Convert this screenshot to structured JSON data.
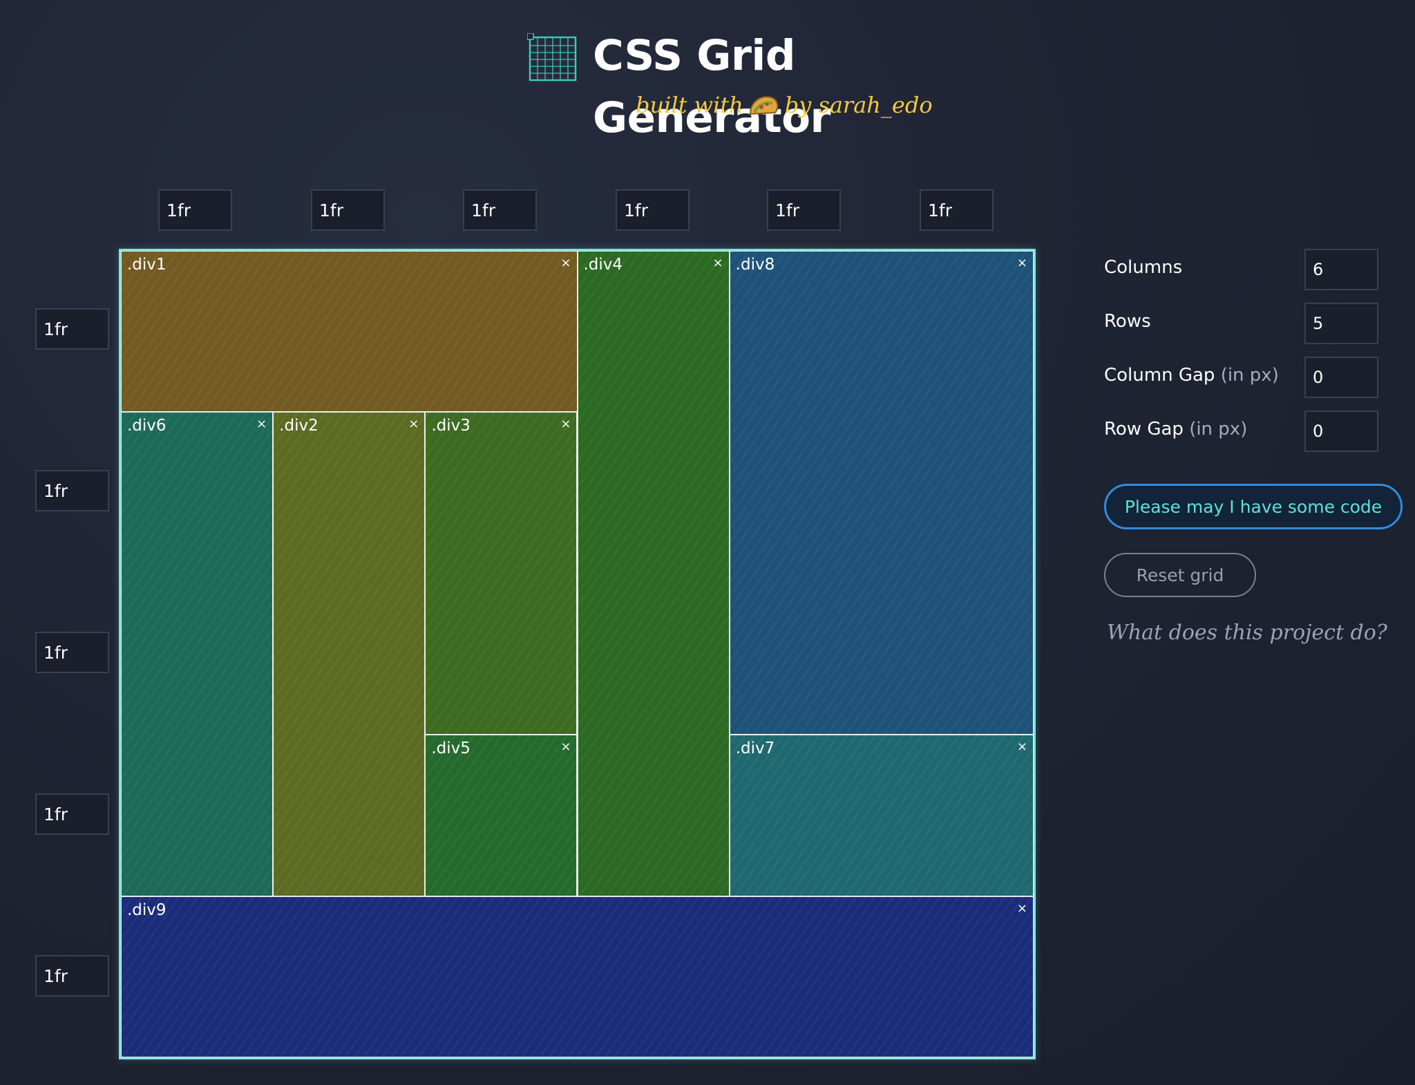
{
  "header": {
    "title": "CSS Grid Generator",
    "subtitle_before": "built with",
    "subtitle_after": "by sarah_edo",
    "logo_icon": "grid-logo-icon",
    "taco_icon": "taco-icon"
  },
  "column_tracks": [
    "1fr",
    "1fr",
    "1fr",
    "1fr",
    "1fr",
    "1fr"
  ],
  "row_tracks": [
    "1fr",
    "1fr",
    "1fr",
    "1fr",
    "1fr"
  ],
  "grid": {
    "columns": 6,
    "rows": 5,
    "close_glyph": "×",
    "areas": [
      {
        "name": ".div1",
        "col": 1,
        "row": 1,
        "colspan": 3,
        "rowspan": 1,
        "color": "#725a21",
        "closable": true
      },
      {
        "name": ".div4",
        "col": 4,
        "row": 1,
        "colspan": 1,
        "rowspan": 4,
        "color": "#2b6a22",
        "closable": true
      },
      {
        "name": ".div8",
        "col": 5,
        "row": 1,
        "colspan": 2,
        "rowspan": 3,
        "color": "#1e5278",
        "closable": true
      },
      {
        "name": ".div6",
        "col": 1,
        "row": 2,
        "colspan": 1,
        "rowspan": 3,
        "color": "#1d6a57",
        "closable": true
      },
      {
        "name": ".div2",
        "col": 2,
        "row": 2,
        "colspan": 1,
        "rowspan": 3,
        "color": "#5d6a22",
        "closable": true
      },
      {
        "name": ".div3",
        "col": 3,
        "row": 2,
        "colspan": 1,
        "rowspan": 2,
        "color": "#3e6a22",
        "closable": true
      },
      {
        "name": ".div5",
        "col": 3,
        "row": 4,
        "colspan": 1,
        "rowspan": 1,
        "color": "#246a2c",
        "closable": true
      },
      {
        "name": ".div7",
        "col": 5,
        "row": 4,
        "colspan": 2,
        "rowspan": 1,
        "color": "#1f6870",
        "closable": true
      },
      {
        "name": ".div9",
        "col": 1,
        "row": 5,
        "colspan": 6,
        "rowspan": 1,
        "color": "#1a2c7a",
        "closable": true
      }
    ]
  },
  "controls": {
    "columns_label": "Columns",
    "columns_value": "6",
    "rows_label": "Rows",
    "rows_value": "5",
    "column_gap_label": "Column Gap",
    "column_gap_unit": "(in px)",
    "column_gap_value": "0",
    "row_gap_label": "Row Gap",
    "row_gap_unit": "(in px)",
    "row_gap_value": "0",
    "code_button": "Please may I have some code",
    "reset_button": "Reset grid",
    "about_link": "What does this project do?"
  },
  "colors": {
    "grid_border": "#7fe5da",
    "accent_text": "#5fe3d4",
    "button_border": "#2f8de0",
    "subtitle": "#f6cb3d"
  }
}
